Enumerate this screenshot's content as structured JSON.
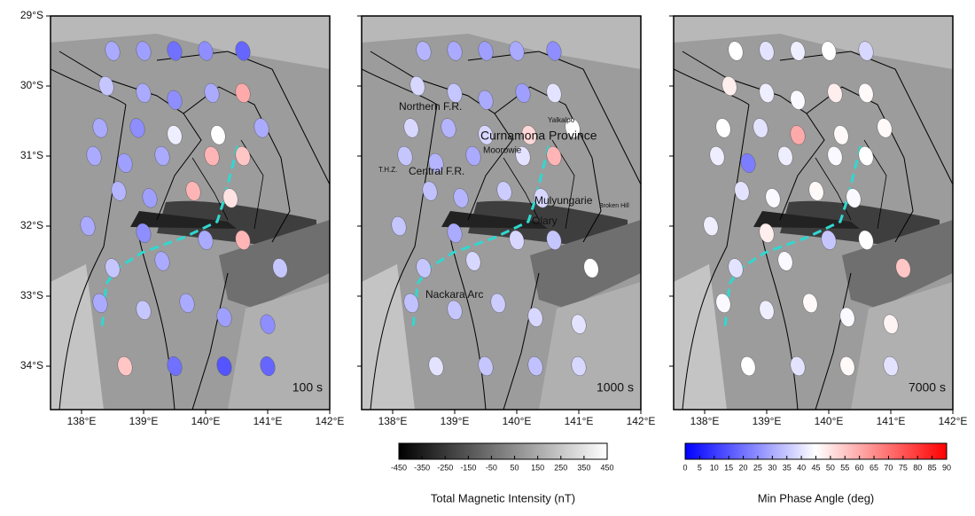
{
  "maps": {
    "xlim": [
      137.5,
      142
    ],
    "ylim": [
      -34.62,
      -29
    ],
    "xticks": [
      {
        "value": 138,
        "label": "138°E"
      },
      {
        "value": 139,
        "label": "139°E"
      },
      {
        "value": 140,
        "label": "140°E"
      },
      {
        "value": 141,
        "label": "141°E"
      },
      {
        "value": 142,
        "label": "142°E"
      }
    ],
    "yticks": [
      {
        "value": -29,
        "label": "29°S"
      },
      {
        "value": -30,
        "label": "30°S"
      },
      {
        "value": -31,
        "label": "31°S"
      },
      {
        "value": -32,
        "label": "32°S"
      },
      {
        "value": -33,
        "label": "33°S"
      },
      {
        "value": -34,
        "label": "34°S"
      }
    ],
    "sites": {
      "lon": [
        138.5,
        139.0,
        139.5,
        140.0,
        140.6,
        138.4,
        139.0,
        139.5,
        140.1,
        140.6,
        138.3,
        138.9,
        139.5,
        140.2,
        140.9,
        138.2,
        138.7,
        139.3,
        140.1,
        140.6,
        138.6,
        139.1,
        139.8,
        140.4,
        138.1,
        139.0,
        140.0,
        140.6,
        138.5,
        139.3,
        141.2,
        138.3,
        139.0,
        139.7,
        140.3,
        141.0,
        138.7,
        139.5,
        140.3,
        141.0
      ],
      "lat": [
        -29.5,
        -29.5,
        -29.5,
        -29.5,
        -29.5,
        -30.0,
        -30.1,
        -30.2,
        -30.1,
        -30.1,
        -30.6,
        -30.6,
        -30.7,
        -30.7,
        -30.6,
        -31.0,
        -31.1,
        -31.0,
        -31.0,
        -31.0,
        -31.5,
        -31.6,
        -31.5,
        -31.6,
        -32.0,
        -32.1,
        -32.2,
        -32.2,
        -32.6,
        -32.5,
        -32.6,
        -33.1,
        -33.2,
        -33.1,
        -33.3,
        -33.4,
        -34.0,
        -34.0,
        -34.0,
        -34.0
      ]
    },
    "panels": [
      {
        "period": "100 s",
        "phase": [
          30,
          28,
          20,
          25,
          18,
          35,
          30,
          25,
          30,
          60,
          30,
          25,
          42,
          45,
          30,
          30,
          28,
          30,
          58,
          55,
          32,
          28,
          58,
          50,
          30,
          25,
          30,
          58,
          35,
          30,
          35,
          30,
          35,
          30,
          28,
          25,
          55,
          20,
          15,
          18
        ]
      },
      {
        "period": "1000 s",
        "phase": [
          32,
          30,
          28,
          30,
          25,
          38,
          35,
          30,
          28,
          40,
          38,
          32,
          38,
          52,
          45,
          35,
          32,
          30,
          40,
          58,
          34,
          32,
          36,
          38,
          35,
          30,
          38,
          35,
          35,
          38,
          45,
          34,
          35,
          36,
          38,
          40,
          40,
          35,
          34,
          38
        ]
      },
      {
        "period": "7000 s",
        "phase": [
          45,
          40,
          42,
          45,
          38,
          48,
          42,
          44,
          48,
          46,
          45,
          40,
          60,
          46,
          46,
          42,
          22,
          42,
          44,
          45,
          40,
          44,
          46,
          44,
          42,
          48,
          35,
          45,
          40,
          44,
          55,
          44,
          42,
          46,
          44,
          47,
          45,
          40,
          46,
          40
        ]
      }
    ],
    "places": [
      "Northern F.R.",
      "Yalkalpo",
      "Curnamona Province",
      "Moorowie",
      "T.H.Z.",
      "Central F.R.",
      "Mulyungarie",
      "Broken Hill",
      "Olary",
      "Nackara Arc"
    ],
    "colorbars": [
      {
        "title": "Total Magnetic Intensity (nT)",
        "clim": [
          -450,
          450
        ],
        "colors": [
          "#000000",
          "#ffffff"
        ],
        "ticks": [
          -450,
          -350,
          -250,
          -150,
          -50,
          50,
          150,
          250,
          350,
          450
        ]
      },
      {
        "title": "Min Phase Angle (deg)",
        "clim": [
          0,
          90
        ],
        "colors": [
          "#0000ff",
          "#ffffff",
          "#ff0000"
        ],
        "ticks": [
          0,
          5,
          10,
          15,
          20,
          25,
          30,
          35,
          40,
          45,
          50,
          55,
          60,
          65,
          70,
          75,
          80,
          85,
          90
        ]
      }
    ]
  }
}
